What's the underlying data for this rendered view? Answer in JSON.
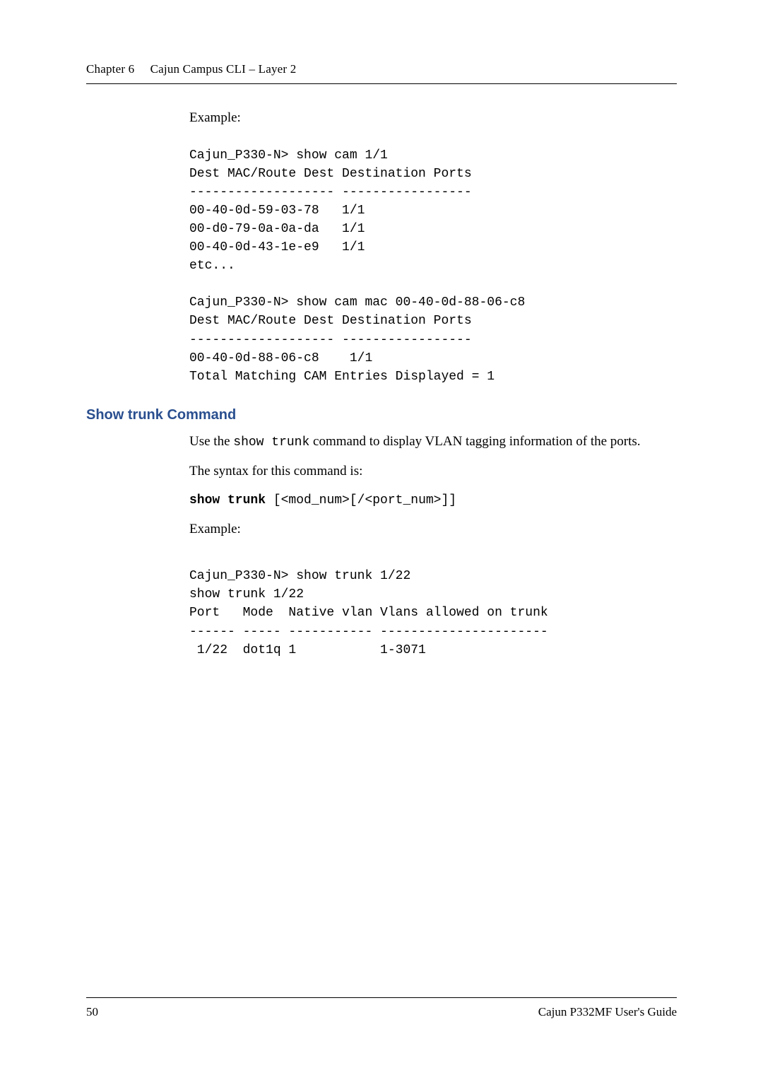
{
  "header": {
    "chapter": "Chapter 6",
    "title": "Cajun Campus CLI – Layer 2"
  },
  "example1": {
    "label": "Example:",
    "lines": [
      "Cajun_P330-N> show cam 1/1",
      "Dest MAC/Route Dest Destination Ports",
      "------------------- -----------------",
      "00-40-0d-59-03-78   1/1",
      "00-d0-79-0a-0a-da   1/1",
      "00-40-0d-43-1e-e9   1/1",
      "etc...",
      "",
      "Cajun_P330-N> show cam mac 00-40-0d-88-06-c8",
      "Dest MAC/Route Dest Destination Ports",
      "------------------- -----------------",
      "00-40-0d-88-06-c8    1/1",
      "Total Matching CAM Entries Displayed = 1"
    ]
  },
  "section": {
    "heading": "Show trunk Command",
    "intro_prefix": "Use the ",
    "intro_code": "show trunk",
    "intro_suffix": " command to display VLAN tagging information of the ports.",
    "syntax_label": "The syntax for this command is:",
    "syntax_bold": "show trunk",
    "syntax_rest": " [<mod_num>[/<port_num>]]"
  },
  "example2": {
    "label": "Example:",
    "lines": [
      "Cajun_P330-N> show trunk 1/22",
      "show trunk 1/22",
      "Port   Mode  Native vlan Vlans allowed on trunk",
      "------ ----- ----------- ----------------------",
      " 1/22  dot1q 1           1-3071"
    ]
  },
  "footer": {
    "page": "50",
    "guide": "Cajun P332MF User's Guide"
  }
}
